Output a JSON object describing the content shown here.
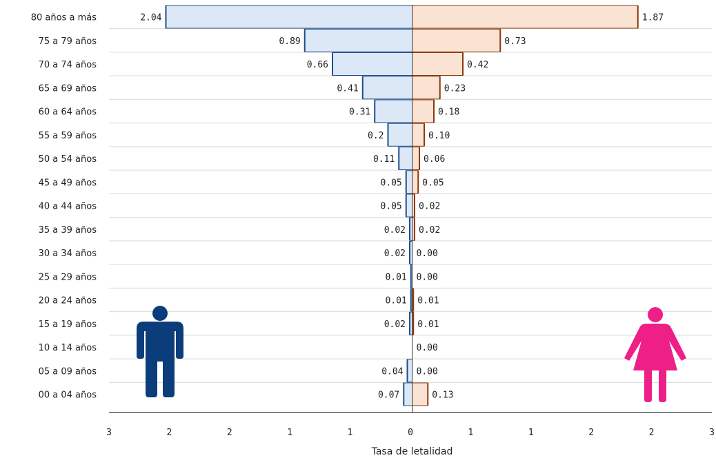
{
  "chart_data": {
    "type": "bar",
    "orientation": "horizontal",
    "subtype": "population-pyramid",
    "xlabel": "Tasa de letalidad",
    "xlim": [
      -2.3,
      2.3
    ],
    "x_tick_labels": [
      "3",
      "2",
      "2",
      "1",
      "1",
      "0",
      "1",
      "1",
      "2",
      "2",
      "3"
    ],
    "categories": [
      "80 años a más",
      "75 a 79 años",
      "70 a 74 años",
      "65 a 69 años",
      "60 a 64 años",
      "55 a 59 años",
      "50 a 54 años",
      "45 a 49 años",
      "40 a 44 años",
      "35 a 39 años",
      "30 a 34 años",
      "25 a 29 años",
      "20 a 24 años",
      "15 a 19 años",
      "10 a 14 años",
      "05 a 09 años",
      "00 a 04 años"
    ],
    "series": [
      {
        "key": "male",
        "side": "left",
        "color": "#1f4e8c",
        "fill": "#dce8f5",
        "icon": "male-figure-icon",
        "values": [
          2.04,
          0.89,
          0.66,
          0.41,
          0.31,
          0.2,
          0.11,
          0.05,
          0.05,
          0.02,
          0.02,
          0.01,
          0.01,
          0.02,
          null,
          0.04,
          0.07
        ],
        "labels": [
          "2.04",
          "0.89",
          "0.66",
          "0.41",
          "0.31",
          "0.2",
          "0.11",
          "0.05",
          "0.05",
          "0.02",
          "0.02",
          "0.01",
          "0.01",
          "0.02",
          "",
          "0.04",
          "0.07"
        ]
      },
      {
        "key": "female",
        "side": "right",
        "color": "#8b3a0e",
        "fill": "#fbe3d4",
        "icon": "female-figure-icon",
        "values": [
          1.87,
          0.73,
          0.42,
          0.23,
          0.18,
          0.1,
          0.06,
          0.05,
          0.02,
          0.02,
          0.0,
          0.0,
          0.01,
          0.01,
          0.0,
          0.0,
          0.13
        ],
        "labels": [
          "1.87",
          "0.73",
          "0.42",
          "0.23",
          "0.18",
          "0.10",
          "0.06",
          "0.05",
          "0.02",
          "0.02",
          "0.00",
          "0.00",
          "0.01",
          "0.01",
          "0.00",
          "0.00",
          "0.13"
        ]
      }
    ],
    "grid": "horizontal",
    "grid_color": "#d9d9d9",
    "icon_colors": {
      "male": "#0b3d7a",
      "female": "#ee1f86"
    }
  }
}
